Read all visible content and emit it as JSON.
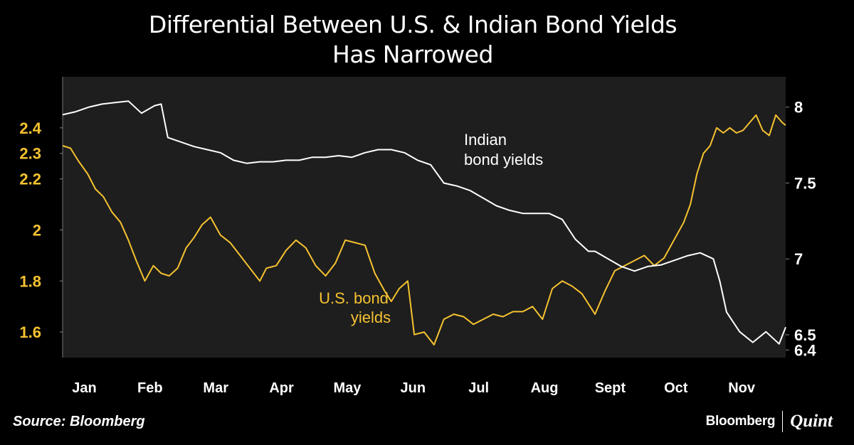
{
  "title_line1": "Differential Between U.S. & Indian Bond  Yields",
  "title_line2": "Has Narrowed",
  "source": "Source: Bloomberg",
  "brand": {
    "left": "Bloomberg",
    "right": "Quint"
  },
  "colors": {
    "background": "#000000",
    "plot_bg": "#1e1e1e",
    "us": "#f5c230",
    "india": "#ffffff"
  },
  "chart_data": {
    "type": "line",
    "months": [
      "Jan",
      "Feb",
      "Mar",
      "Apr",
      "May",
      "Jun",
      "Jul",
      "Aug",
      "Sept",
      "Oct",
      "Nov"
    ],
    "left_axis": {
      "ticks": [
        "2.4",
        "2.3",
        "2.2",
        "2",
        "1.8",
        "1.6"
      ],
      "tick_values": [
        2.4,
        2.3,
        2.2,
        2.0,
        1.8,
        1.6
      ],
      "range": [
        1.5,
        2.6
      ]
    },
    "right_axis": {
      "ticks": [
        "8",
        "7.5",
        "7",
        "6.5",
        "6.4"
      ],
      "tick_values": [
        8.0,
        7.5,
        7.0,
        6.5,
        6.4
      ],
      "range": [
        6.35,
        8.2
      ]
    },
    "series": [
      {
        "name": "U.S. bond yields",
        "label_lines": [
          "U.S. bond",
          "yields"
        ],
        "axis": "left",
        "x": [
          0,
          0.12,
          0.24,
          0.38,
          0.5,
          0.62,
          0.75,
          0.88,
          1.0,
          1.12,
          1.25,
          1.38,
          1.5,
          1.62,
          1.75,
          1.88,
          2.0,
          2.12,
          2.25,
          2.4,
          2.55,
          2.7,
          2.85,
          3.0,
          3.1,
          3.25,
          3.4,
          3.55,
          3.7,
          3.85,
          4.0,
          4.15,
          4.3,
          4.45,
          4.6,
          4.75,
          4.9,
          5.0,
          5.12,
          5.25,
          5.35,
          5.5,
          5.65,
          5.8,
          5.95,
          6.1,
          6.25,
          6.4,
          6.55,
          6.7,
          6.85,
          7.0,
          7.15,
          7.3,
          7.45,
          7.6,
          7.75,
          7.9,
          8.0,
          8.1,
          8.25,
          8.4,
          8.55,
          8.7,
          8.85,
          9.0,
          9.15,
          9.3,
          9.45,
          9.55,
          9.65,
          9.75,
          9.85,
          9.95,
          10.05,
          10.15,
          10.25,
          10.35,
          10.45,
          10.55,
          10.65,
          10.75,
          10.85,
          10.95,
          11.0
        ],
        "values": [
          2.33,
          2.32,
          2.27,
          2.22,
          2.16,
          2.13,
          2.07,
          2.03,
          1.96,
          1.88,
          1.8,
          1.86,
          1.83,
          1.82,
          1.85,
          1.93,
          1.97,
          2.02,
          2.05,
          1.98,
          1.95,
          1.9,
          1.85,
          1.8,
          1.85,
          1.86,
          1.92,
          1.96,
          1.93,
          1.86,
          1.82,
          1.87,
          1.96,
          1.95,
          1.94,
          1.83,
          1.76,
          1.72,
          1.77,
          1.8,
          1.59,
          1.6,
          1.55,
          1.65,
          1.67,
          1.66,
          1.63,
          1.65,
          1.67,
          1.66,
          1.68,
          1.68,
          1.7,
          1.65,
          1.77,
          1.8,
          1.78,
          1.75,
          1.71,
          1.67,
          1.76,
          1.84,
          1.86,
          1.88,
          1.9,
          1.86,
          1.89,
          1.96,
          2.03,
          2.1,
          2.22,
          2.3,
          2.33,
          2.4,
          2.38,
          2.4,
          2.38,
          2.39,
          2.42,
          2.45,
          2.39,
          2.37,
          2.45,
          2.42,
          2.41
        ]
      },
      {
        "name": "Indian bond yields",
        "label_lines": [
          "Indian",
          "bond yields"
        ],
        "axis": "right",
        "x": [
          0,
          0.2,
          0.4,
          0.6,
          0.8,
          1.0,
          1.2,
          1.4,
          1.5,
          1.6,
          1.8,
          2.0,
          2.2,
          2.4,
          2.6,
          2.8,
          3.0,
          3.2,
          3.4,
          3.6,
          3.8,
          4.0,
          4.2,
          4.4,
          4.6,
          4.8,
          5.0,
          5.2,
          5.4,
          5.6,
          5.8,
          6.0,
          6.2,
          6.4,
          6.6,
          6.8,
          7.0,
          7.2,
          7.4,
          7.6,
          7.8,
          8.0,
          8.1,
          8.3,
          8.5,
          8.7,
          8.9,
          9.1,
          9.3,
          9.5,
          9.7,
          9.9,
          10.0,
          10.1,
          10.3,
          10.5,
          10.7,
          10.9,
          11.0
        ],
        "values": [
          7.95,
          7.97,
          8.0,
          8.02,
          8.03,
          8.04,
          7.96,
          8.01,
          8.02,
          7.8,
          7.77,
          7.74,
          7.72,
          7.7,
          7.65,
          7.63,
          7.64,
          7.64,
          7.65,
          7.65,
          7.67,
          7.67,
          7.68,
          7.67,
          7.7,
          7.72,
          7.72,
          7.7,
          7.65,
          7.62,
          7.5,
          7.48,
          7.45,
          7.4,
          7.35,
          7.32,
          7.3,
          7.3,
          7.3,
          7.26,
          7.13,
          7.05,
          7.05,
          7.0,
          6.95,
          6.92,
          6.95,
          6.96,
          6.99,
          7.02,
          7.04,
          7.0,
          6.85,
          6.65,
          6.52,
          6.45,
          6.52,
          6.44,
          6.55
        ]
      }
    ]
  }
}
